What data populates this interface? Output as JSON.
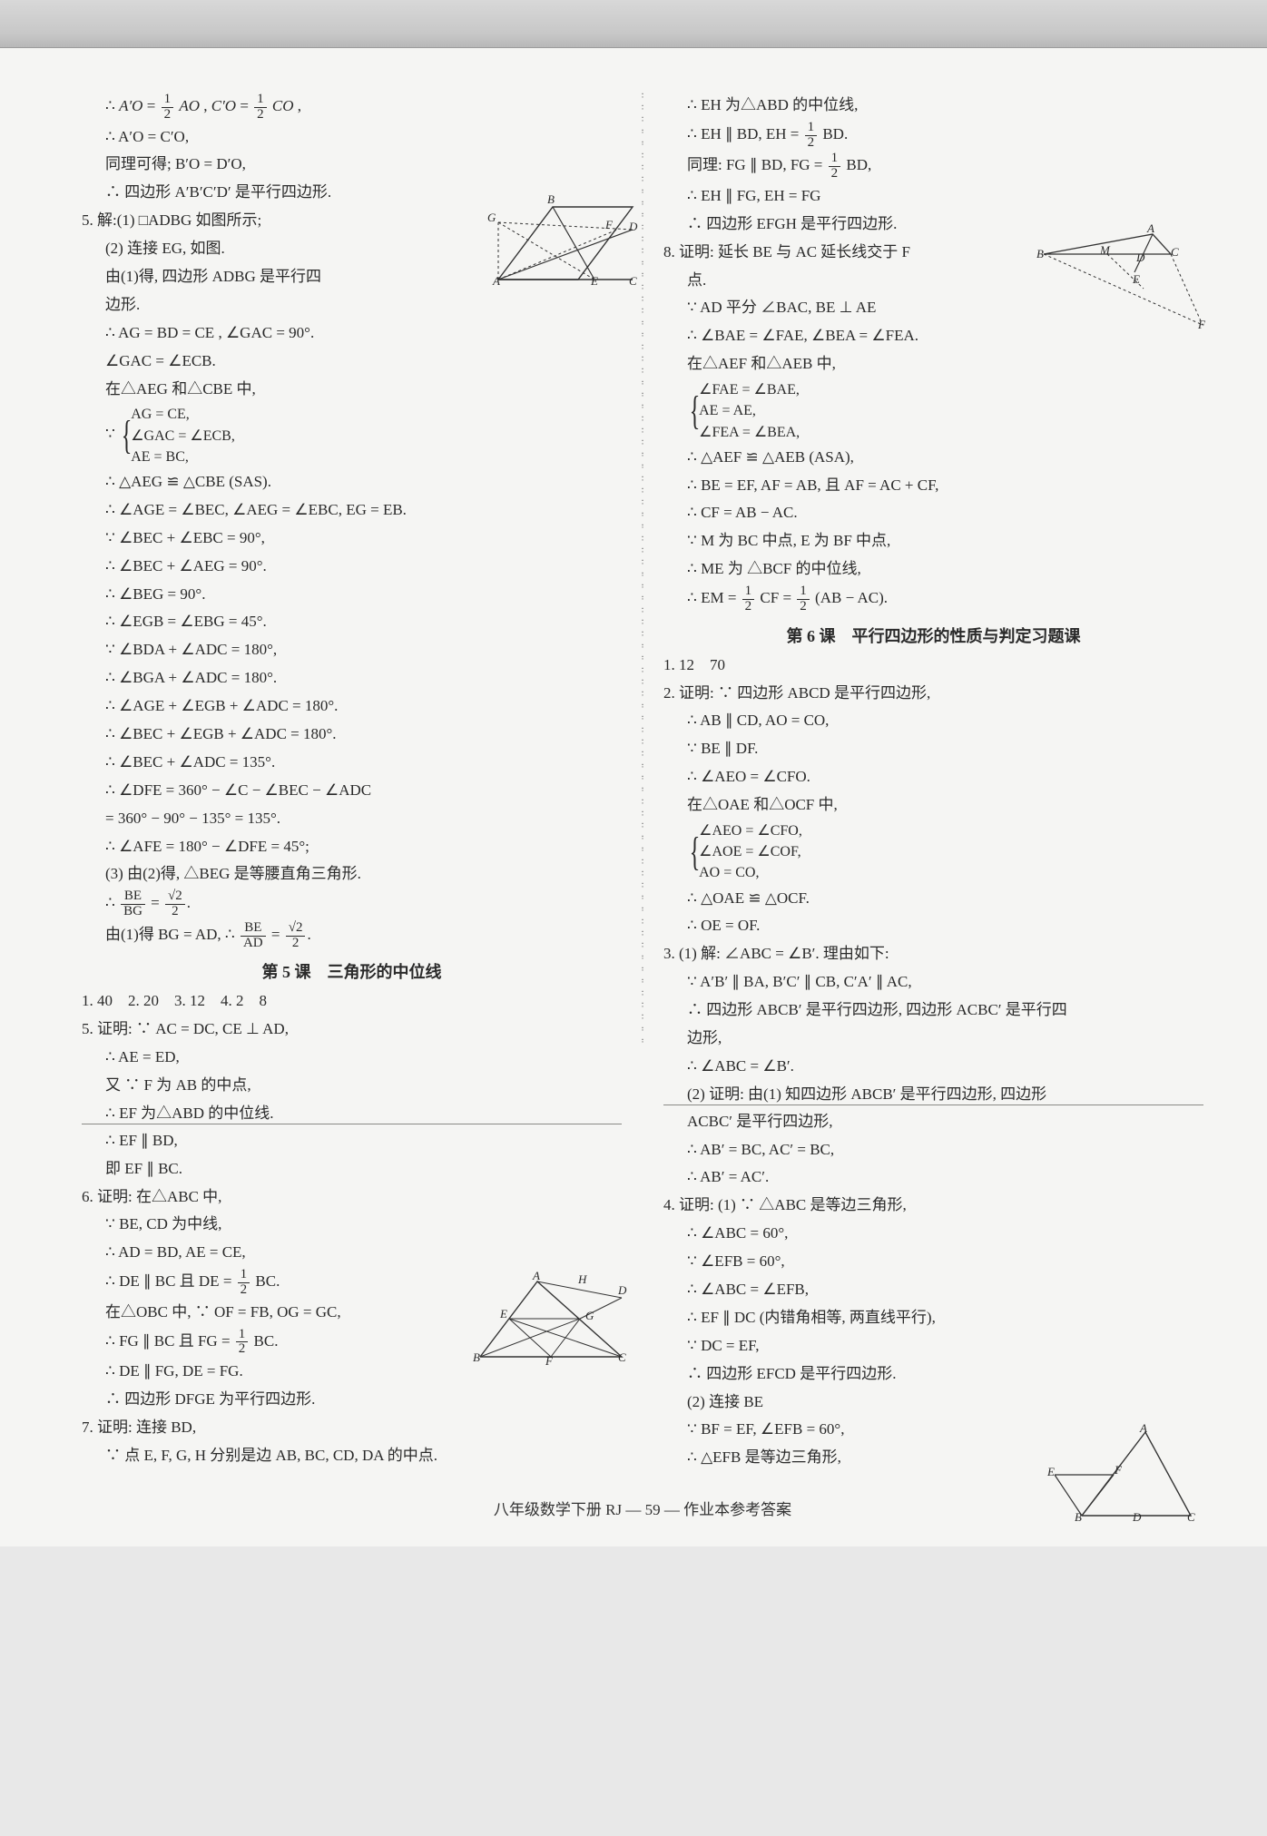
{
  "footer": "八年级数学下册 RJ — 59 — 作业本参考答案",
  "left": {
    "l01": "∴ A′O = ½ AO , C′O = ½ CO ,",
    "l01a": "A′O",
    "l01b": "AO , C′O",
    "l01c": "CO ,",
    "l02": "∴ A′O = C′O,",
    "l03": "同理可得; B′O = D′O,",
    "l04": "∴ 四边形 A′B′C′D′ 是平行四边形.",
    "l05": "5. 解:(1) □ADBG 如图所示;",
    "l06": "(2) 连接 EG, 如图.",
    "l07": "由(1)得, 四边形 ADBG 是平行四",
    "l08": "边形.",
    "l09": "∴ AG = BD = CE , ∠GAC = 90°.",
    "l10": "∠GAC = ∠ECB.",
    "l11": "在△AEG 和△CBE 中,",
    "l12a": "AG = CE,",
    "l12b": "∠GAC = ∠ECB,",
    "l12c": "AE = BC,",
    "l13": "∴ △AEG ≌ △CBE (SAS).",
    "l14": "∴ ∠AGE = ∠BEC, ∠AEG = ∠EBC, EG = EB.",
    "l15": "∵ ∠BEC + ∠EBC = 90°,",
    "l16": "∴ ∠BEC + ∠AEG = 90°.",
    "l17": "∴ ∠BEG = 90°.",
    "l18": "∴ ∠EGB = ∠EBG = 45°.",
    "l19": "∵ ∠BDA + ∠ADC = 180°,",
    "l20": "∴ ∠BGA + ∠ADC = 180°.",
    "l21": "∴ ∠AGE + ∠EGB + ∠ADC = 180°.",
    "l22": "∴ ∠BEC + ∠EGB + ∠ADC = 180°.",
    "l23": "∴ ∠BEC + ∠ADC = 135°.",
    "l24": "∴ ∠DFE = 360° − ∠C − ∠BEC − ∠ADC",
    "l25": "= 360° − 90° − 135° = 135°.",
    "l26": "∴ ∠AFE = 180° − ∠DFE = 45°;",
    "l27": "(3) 由(2)得, △BEG 是等腰直角三角形.",
    "l28": "由(1)得 BG = AD, ∴",
    "title5": "第 5 课　三角形的中位线",
    "l29": "1. 40　2. 20　3. 12　4. 2　8",
    "l30": "5. 证明: ∵ AC = DC, CE ⊥ AD,",
    "l31": "∴ AE = ED,",
    "l32": "又 ∵ F 为 AB 的中点,",
    "l33": "∴ EF 为△ABD 的中位线.",
    "l34": "∴ EF ∥ BD,",
    "l35": "即 EF ∥ BC.",
    "l36": "6. 证明: 在△ABC 中,",
    "l37": "∵ BE, CD 为中线,",
    "l38": "∴ AD = BD, AE = CE,",
    "l39": "∴ DE ∥ BC 且 DE = ½ BC.",
    "l39a": "∴ DE ∥ BC 且 DE = ",
    "l39b": "BC.",
    "l40": "在△OBC 中, ∵ OF = FB, OG = GC,",
    "l41": "∴ FG ∥ BC 且 FG = ½ BC.",
    "l41a": "∴ FG ∥ BC 且 FG = ",
    "l41b": "BC.",
    "l42": "∴ DE ∥ FG, DE = FG.",
    "l43": "∴ 四边形 DFGE 为平行四边形.",
    "l44": "7. 证明: 连接 BD,",
    "l45": "∵ 点 E, F, G, H 分别是边 AB, BC, CD, DA 的中点."
  },
  "right": {
    "r01": "∴ EH 为△ABD 的中位线,",
    "r02a": "∴ EH ∥ BD, EH = ",
    "r02b": "BD.",
    "r03a": "同理: FG ∥ BD, FG = ",
    "r03b": "BD,",
    "r04": "∴ EH ∥ FG, EH = FG",
    "r05": "∴ 四边形 EFGH 是平行四边形.",
    "r06": "8. 证明: 延长 BE 与 AC 延长线交于 F",
    "r07": "点.",
    "r08": "∵ AD 平分 ∠BAC, BE ⊥ AE",
    "r09": "∴ ∠BAE = ∠FAE, ∠BEA = ∠FEA.",
    "r10": "在△AEF 和△AEB 中,",
    "r11a": "∠FAE = ∠BAE,",
    "r11b": "AE = AE,",
    "r11c": "∠FEA = ∠BEA,",
    "r12": "∴ △AEF ≌ △AEB (ASA),",
    "r13": "∴ BE = EF, AF = AB, 且 AF = AC + CF,",
    "r14": "∴ CF = AB − AC.",
    "r15": "∵ M 为 BC 中点, E 为 BF 中点,",
    "r16": "∴ ME 为 △BCF 的中位线,",
    "r17a": "∴ EM = ",
    "r17b": "CF = ",
    "r17c": "(AB − AC).",
    "title6": "第 6 课　平行四边形的性质与判定习题课",
    "r18": "1. 12　70",
    "r19": "2. 证明: ∵ 四边形 ABCD 是平行四边形,",
    "r20": "∴ AB ∥ CD, AO = CO,",
    "r21": "∵ BE ∥ DF.",
    "r22": "∴ ∠AEO = ∠CFO.",
    "r23": "在△OAE 和△OCF 中,",
    "r24a": "∠AEO = ∠CFO,",
    "r24b": "∠AOE = ∠COF,",
    "r24c": "AO = CO,",
    "r25": "∴ △OAE ≌ △OCF.",
    "r26": "∴ OE = OF.",
    "r27": "3. (1) 解: ∠ABC = ∠B′. 理由如下:",
    "r28": "∵ A′B′ ∥ BA, B′C′ ∥ CB, C′A′ ∥ AC,",
    "r29": "∴ 四边形 ABCB′ 是平行四边形, 四边形 ACBC′ 是平行四",
    "r30": "边形,",
    "r31": "∴ ∠ABC = ∠B′.",
    "r32": "(2) 证明: 由(1) 知四边形 ABCB′ 是平行四边形, 四边形",
    "r33": "ACBC′ 是平行四边形,",
    "r34": "∴ AB′ = BC, AC′ = BC,",
    "r35": "∴ AB′ = AC′.",
    "r36": "4. 证明: (1) ∵ △ABC 是等边三角形,",
    "r37": "∴ ∠ABC = 60°,",
    "r38": "∵ ∠EFB = 60°,",
    "r39": "∴ ∠ABC = ∠EFB,",
    "r40": "∴ EF ∥ DC (内错角相等, 两直线平行),",
    "r41": "∵ DC = EF,",
    "r42": "∴ 四边形 EFCD 是平行四边形.",
    "r43": "(2) 连接 BE",
    "r44": "∵ BF = EF, ∠EFB = 60°,",
    "r45": "∴ △EFB 是等边三角形,"
  },
  "fracs": {
    "half_num": "1",
    "half_den": "2",
    "sqrt2_num": "√2",
    "sqrt2_den": "2",
    "be_bg_num": "BE",
    "be_bg_den": "BG",
    "be_ad_num": "BE",
    "be_ad_den": "AD"
  },
  "figures": {
    "f1": {
      "labels": [
        "A",
        "B",
        "C",
        "D",
        "E",
        "G"
      ]
    },
    "f2": {
      "labels": [
        "A",
        "B",
        "C",
        "D",
        "E",
        "F",
        "G",
        "H"
      ]
    },
    "f3": {
      "labels": [
        "A",
        "B",
        "C",
        "D",
        "E",
        "F",
        "M"
      ]
    },
    "f4": {
      "labels": [
        "A",
        "B",
        "C",
        "D",
        "E",
        "F"
      ]
    }
  },
  "colors": {
    "page_bg": "#f5f5f3",
    "text": "#2a2a2a",
    "band_top": "#d8d8d8",
    "band_bot": "#b8b8b8",
    "rule": "#8a8a86"
  }
}
